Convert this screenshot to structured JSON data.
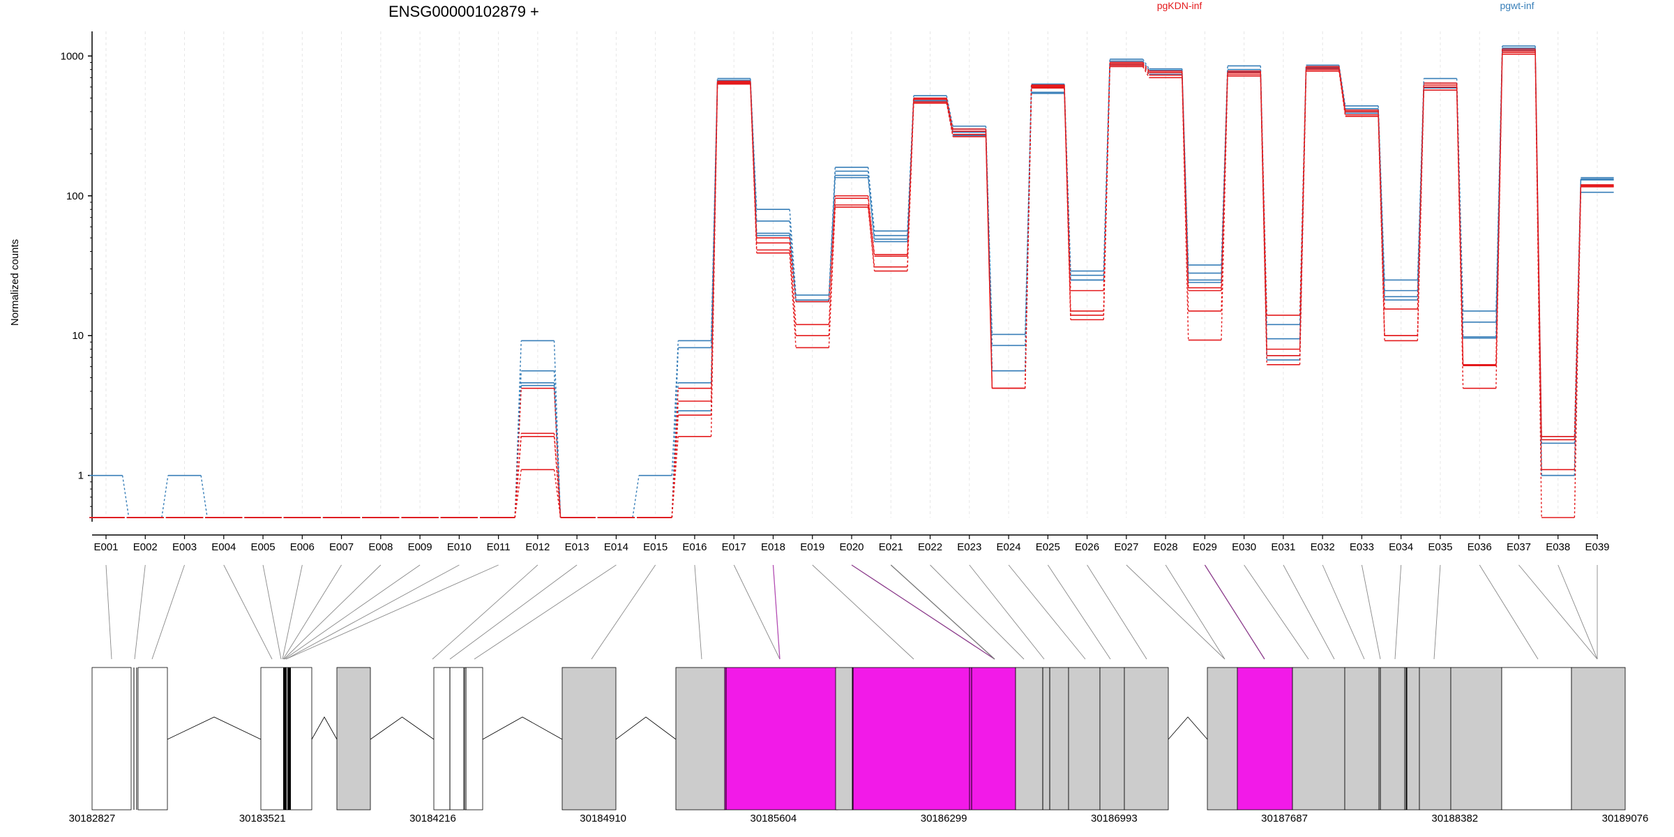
{
  "chart_data": {
    "type": "line",
    "title": "ENSG00000102879 +",
    "ylabel": "Normalized counts",
    "xlabel": "",
    "yscale": "log",
    "ylim": [
      0.5,
      1500
    ],
    "yticks": [
      1,
      10,
      100,
      1000
    ],
    "ytick_labels": [
      "1",
      "10",
      "100",
      "1000"
    ],
    "grid": "vertical dashed",
    "colors": {
      "pgKDN-inf": "#e41a1c",
      "pgwt-inf": "#377eb8",
      "highlight": "#f21ae8",
      "exon_fill": "#cccccc"
    },
    "categories": [
      "E001",
      "E002",
      "E003",
      "E004",
      "E005",
      "E006",
      "E007",
      "E008",
      "E009",
      "E010",
      "E011",
      "E012",
      "E013",
      "E014",
      "E015",
      "E016",
      "E017",
      "E018",
      "E019",
      "E020",
      "E021",
      "E022",
      "E023",
      "E024",
      "E025",
      "E026",
      "E027",
      "E028",
      "E029",
      "E030",
      "E031",
      "E032",
      "E033",
      "E034",
      "E035",
      "E036",
      "E037",
      "E038",
      "E039"
    ],
    "legend": [
      {
        "name": "pgKDN-inf",
        "color": "#e41a1c"
      },
      {
        "name": "pgwt-inf",
        "color": "#377eb8"
      }
    ],
    "series": [
      {
        "group": "pgwt-inf",
        "values": [
          1,
          0.5,
          1,
          0.5,
          0.5,
          0.5,
          0.5,
          0.5,
          0.5,
          0.5,
          0.5,
          9.2,
          0.5,
          0.5,
          1,
          9.2,
          690,
          80,
          19.5,
          160,
          56,
          520,
          315,
          10.2,
          630,
          29,
          950,
          810,
          32,
          850,
          12,
          860,
          440,
          25,
          690,
          15,
          1180,
          1.9,
          135
        ]
      },
      {
        "group": "pgwt-inf",
        "values": [
          0.5,
          0.5,
          0.5,
          0.5,
          0.5,
          0.5,
          0.5,
          0.5,
          0.5,
          0.5,
          0.5,
          5.6,
          0.5,
          0.5,
          0.5,
          8.2,
          670,
          66,
          18,
          150,
          52,
          500,
          300,
          8.5,
          590,
          27,
          920,
          790,
          28,
          800,
          9.5,
          830,
          420,
          21,
          640,
          12.5,
          1140,
          1.7,
          132
        ]
      },
      {
        "group": "pgwt-inf",
        "values": [
          0.5,
          0.5,
          0.5,
          0.5,
          0.5,
          0.5,
          0.5,
          0.5,
          0.5,
          0.5,
          0.5,
          4.6,
          0.5,
          0.5,
          0.5,
          4.6,
          650,
          54,
          17.5,
          140,
          49,
          480,
          285,
          5.6,
          550,
          25,
          880,
          760,
          24,
          770,
          7.2,
          810,
          400,
          19,
          600,
          9.8,
          1100,
          1,
          130
        ]
      },
      {
        "group": "pgwt-inf",
        "values": [
          0.5,
          0.5,
          0.5,
          0.5,
          0.5,
          0.5,
          0.5,
          0.5,
          0.5,
          0.5,
          0.5,
          4.4,
          0.5,
          0.5,
          0.5,
          2.9,
          640,
          52,
          17.5,
          135,
          47,
          470,
          270,
          5.6,
          540,
          25,
          860,
          740,
          25,
          760,
          6.7,
          800,
          390,
          18,
          590,
          9.6,
          1090,
          1,
          106
        ]
      },
      {
        "group": "pgKDN-inf",
        "values": [
          0.5,
          0.5,
          0.5,
          0.5,
          0.5,
          0.5,
          0.5,
          0.5,
          0.5,
          0.5,
          0.5,
          4.2,
          0.5,
          0.5,
          0.5,
          4.2,
          660,
          50,
          17.5,
          100,
          38,
          500,
          300,
          4.2,
          620,
          21,
          900,
          780,
          22,
          780,
          14,
          840,
          410,
          15.5,
          640,
          6.2,
          1120,
          1.9,
          120
        ]
      },
      {
        "group": "pgKDN-inf",
        "values": [
          0.5,
          0.5,
          0.5,
          0.5,
          0.5,
          0.5,
          0.5,
          0.5,
          0.5,
          0.5,
          0.5,
          2,
          0.5,
          0.5,
          0.5,
          3.4,
          650,
          46,
          12,
          96,
          37,
          490,
          290,
          4.2,
          610,
          15,
          880,
          760,
          21,
          760,
          8,
          820,
          400,
          10,
          620,
          6.1,
          1090,
          1.8,
          118
        ]
      },
      {
        "group": "pgKDN-inf",
        "values": [
          0.5,
          0.5,
          0.5,
          0.5,
          0.5,
          0.5,
          0.5,
          0.5,
          0.5,
          0.5,
          0.5,
          1.9,
          0.5,
          0.5,
          0.5,
          2.7,
          640,
          41,
          10,
          86,
          31,
          470,
          275,
          4.2,
          600,
          14,
          860,
          730,
          15,
          740,
          7.2,
          800,
          380,
          10,
          600,
          6.1,
          1060,
          1.1,
          117
        ]
      },
      {
        "group": "pgKDN-inf",
        "values": [
          0.5,
          0.5,
          0.5,
          0.5,
          0.5,
          0.5,
          0.5,
          0.5,
          0.5,
          0.5,
          0.5,
          1.1,
          0.5,
          0.5,
          0.5,
          1.9,
          630,
          39,
          8.2,
          83,
          29,
          460,
          265,
          4.2,
          590,
          13,
          840,
          700,
          9.3,
          720,
          6.2,
          780,
          370,
          9.2,
          570,
          4.2,
          1030,
          0.5,
          116
        ]
      }
    ],
    "gene_model": {
      "coordinate_labels": [
        "30182827",
        "30183521",
        "30184216",
        "30184910",
        "30185604",
        "30186299",
        "30186993",
        "30187687",
        "30188382",
        "30189076"
      ],
      "intron_breaks": 5
    }
  }
}
